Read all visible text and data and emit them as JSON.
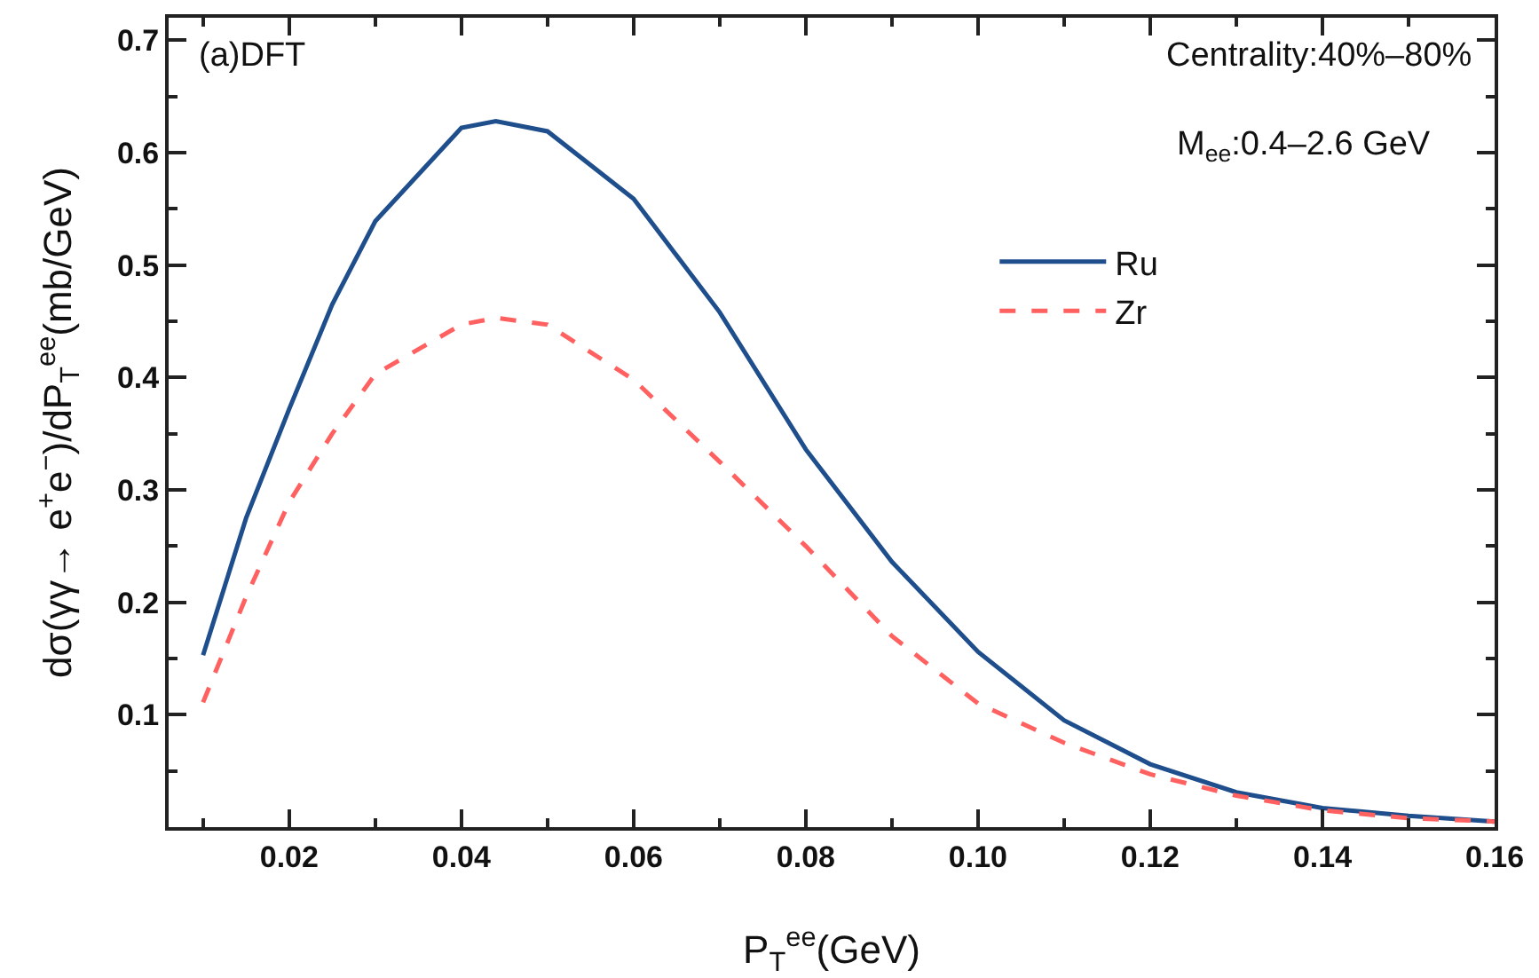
{
  "chart_data": {
    "type": "line",
    "xlabel": "P$_{T}$$^{ee}$(GeV)",
    "ylabel": "dσ(γγ→ e$^{+}$e$^{−}$)/dP$_{T}$$^{ee}$(mb/GeV)",
    "x": [
      0.01,
      0.015,
      0.02,
      0.025,
      0.03,
      0.04,
      0.044,
      0.05,
      0.06,
      0.07,
      0.08,
      0.09,
      0.1,
      0.11,
      0.12,
      0.13,
      0.14,
      0.15,
      0.16
    ],
    "series": [
      {
        "name": "Ru",
        "color": "#1f4e8c",
        "line_style": "solid",
        "values": [
          0.153,
          0.275,
          0.372,
          0.465,
          0.539,
          0.622,
          0.628,
          0.619,
          0.559,
          0.458,
          0.336,
          0.236,
          0.156,
          0.095,
          0.056,
          0.031,
          0.017,
          0.01,
          0.005
        ]
      },
      {
        "name": "Zr",
        "color": "#ff6060",
        "line_style": "dashed",
        "values": [
          0.111,
          0.205,
          0.289,
          0.35,
          0.403,
          0.447,
          0.453,
          0.447,
          0.398,
          0.325,
          0.25,
          0.17,
          0.11,
          0.075,
          0.047,
          0.028,
          0.015,
          0.008,
          0.005
        ]
      }
    ],
    "xlim": [
      0.006,
      0.16
    ],
    "xticks": [
      {
        "value": 0.02,
        "label": "0.02"
      },
      {
        "value": 0.04,
        "label": "0.04"
      },
      {
        "value": 0.06,
        "label": "0.06"
      },
      {
        "value": 0.08,
        "label": "0.08"
      },
      {
        "value": 0.1,
        "label": "0.10"
      },
      {
        "value": 0.12,
        "label": "0.12"
      },
      {
        "value": 0.14,
        "label": "0.14"
      },
      {
        "value": 0.16,
        "label": "0.16"
      }
    ],
    "ylim": [
      0,
      0.72
    ],
    "yticks": [
      0.1,
      0.2,
      0.3,
      0.4,
      0.5,
      0.6,
      0.7
    ],
    "grid": false,
    "legend": "top right",
    "marker": "none",
    "annotations": [
      "(a)DFT",
      "Centrality:40%–80%",
      "M$_{ee}$:0.4–2.6 GeV"
    ]
  }
}
